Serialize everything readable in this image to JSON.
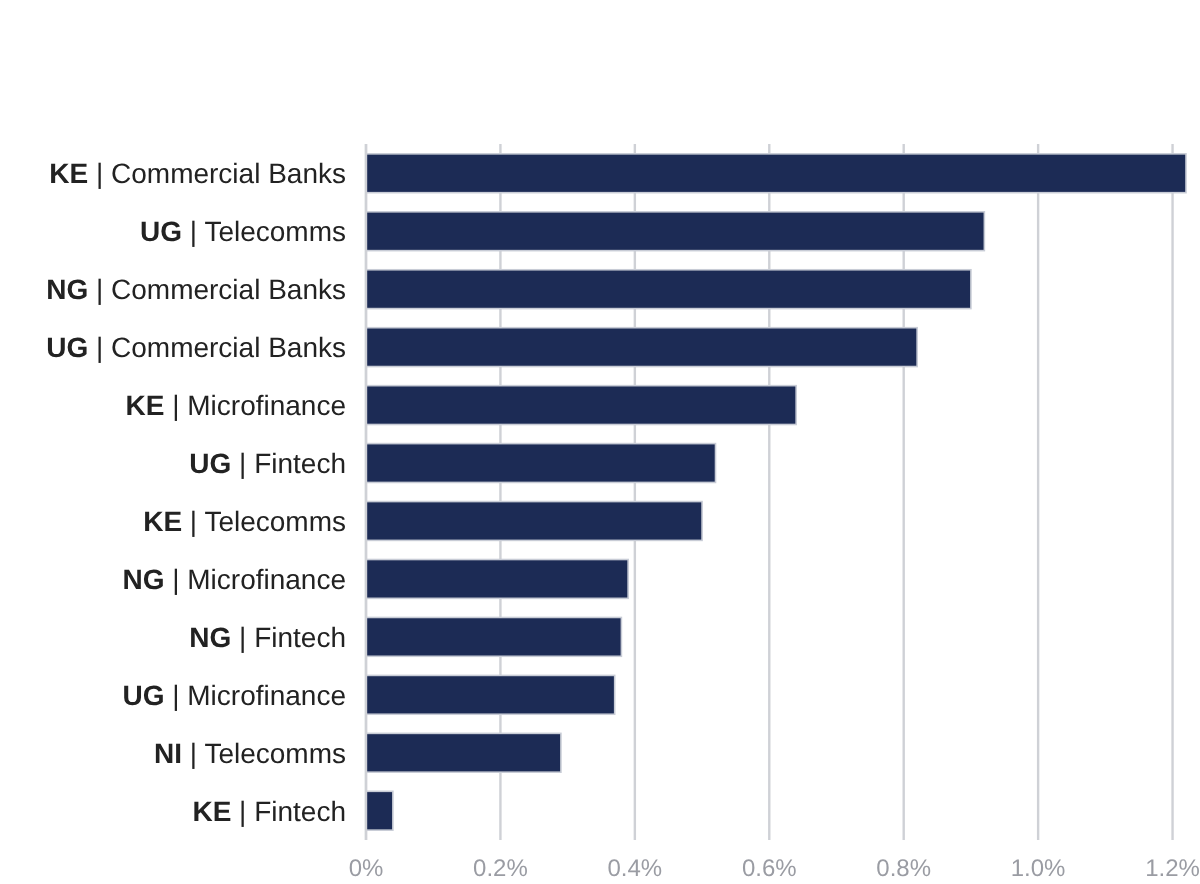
{
  "chart_data": {
    "type": "bar",
    "orientation": "horizontal",
    "categories": [
      "KE | Commercial Banks",
      "UG | Telecomms",
      "NG | Commercial Banks",
      "UG | Commercial Banks",
      "KE | Microfinance",
      "UG | Fintech",
      "KE | Telecomms",
      "NG | Microfinance",
      "NG | Fintech",
      "UG | Microfinance",
      "NI | Telecomms",
      "KE | Fintech"
    ],
    "values": [
      1.22,
      0.92,
      0.9,
      0.82,
      0.64,
      0.52,
      0.5,
      0.39,
      0.38,
      0.37,
      0.29,
      0.04
    ],
    "color": "#1c2b55",
    "xlim": [
      0,
      1.22
    ],
    "xticks": [
      {
        "value": 0,
        "label": "0%"
      },
      {
        "value": 0.2,
        "label": "0.2%"
      },
      {
        "value": 0.4,
        "label": "0.4%"
      },
      {
        "value": 0.6,
        "label": "0.6%"
      },
      {
        "value": 0.8,
        "label": "0.8%"
      },
      {
        "value": 1.0,
        "label": "1.0%"
      },
      {
        "value": 1.2,
        "label": "1.2%"
      }
    ],
    "grid": "x"
  }
}
